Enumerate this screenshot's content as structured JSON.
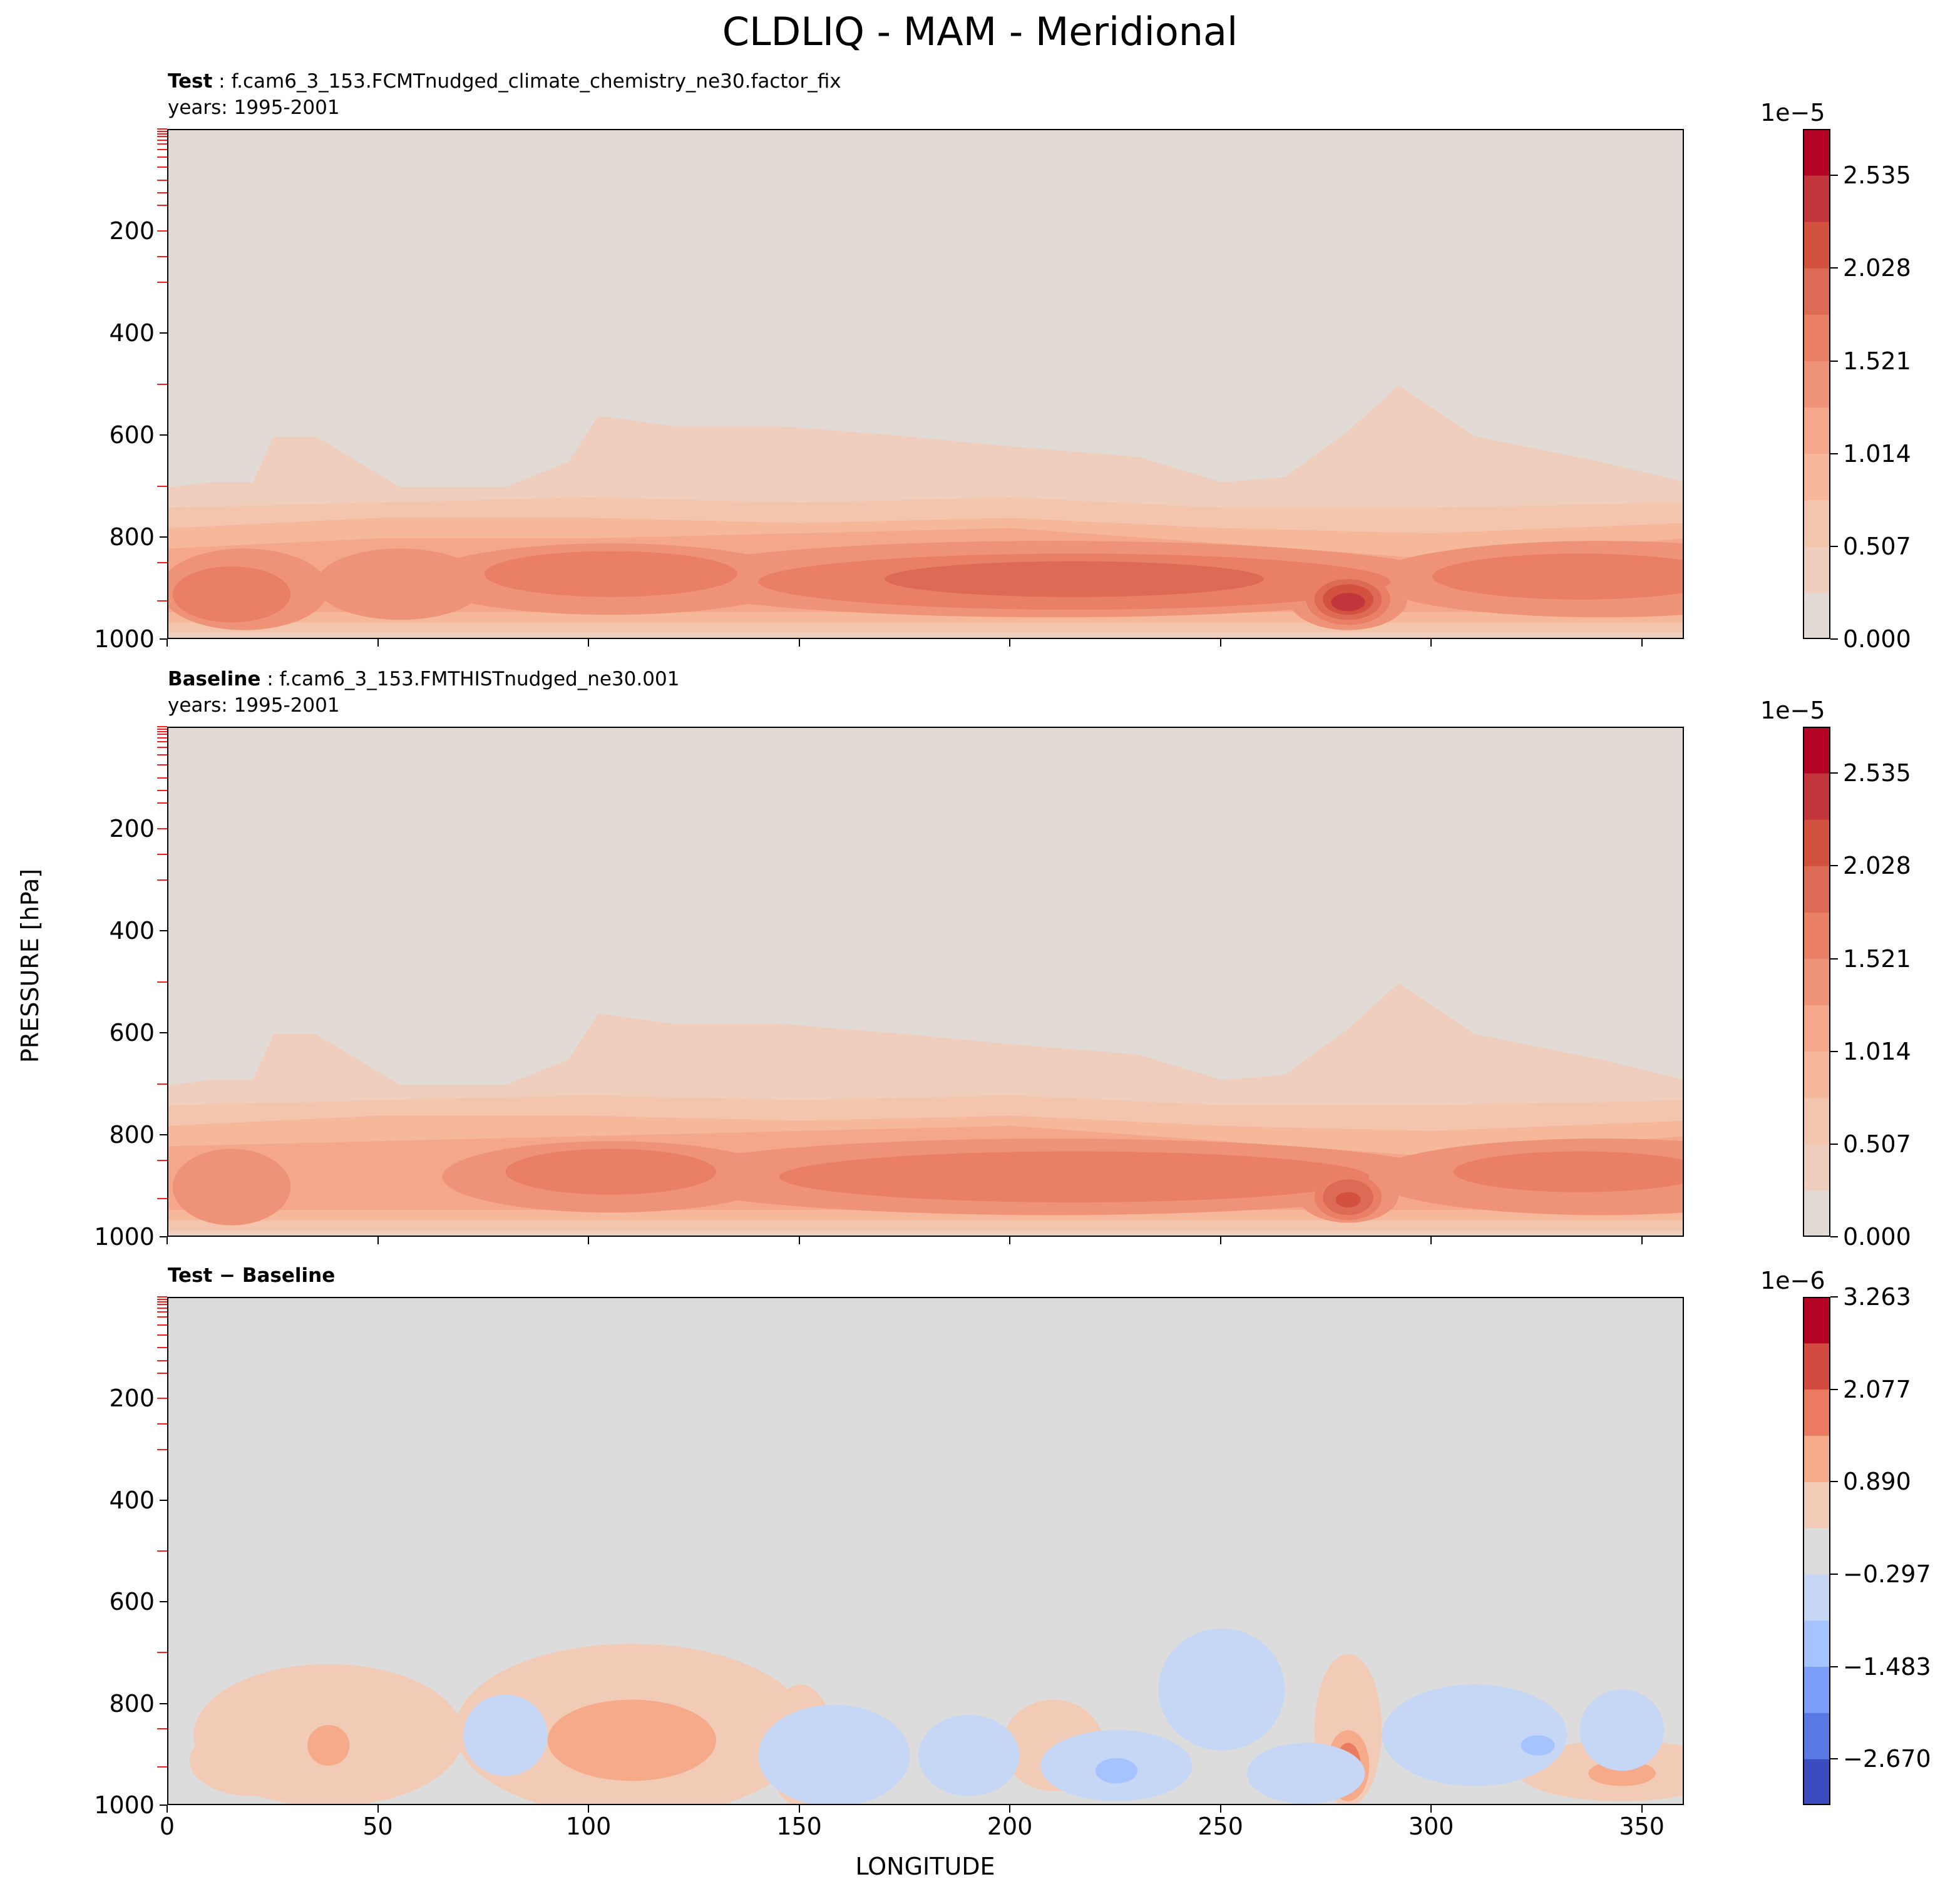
{
  "title": "CLDLIQ - MAM - Meridional",
  "ylabel": "PRESSURE [hPa]",
  "xlabel": "LONGITUDE",
  "colors": {
    "warm": [
      "#e1dad5",
      "#efcebd",
      "#f4c5ad",
      "#f6b89b",
      "#f5a78b",
      "#ef9378",
      "#e98066",
      "#dd6a54",
      "#d2513f",
      "#c2363b",
      "#b40426"
    ],
    "diverging": [
      "#3b4cc0",
      "#5a78e4",
      "#7b9ff9",
      "#a5c3fe",
      "#c5d7f5",
      "#dddcdc",
      "#f2cbb7",
      "#f5aa8a",
      "#ea7b60",
      "#d24b40",
      "#b40426"
    ]
  },
  "chart_data": [
    {
      "type": "contourf",
      "panel": "test",
      "label_bold": "Test",
      "label_rest": " : f.cam6_3_153.FCMTnudged_climate_chemistry_ne30.factor_fix",
      "years": "years: 1995-2001",
      "xlim": [
        0,
        360
      ],
      "ylim": [
        1000,
        0
      ],
      "yticks": [
        "200",
        "400",
        "600",
        "800",
        "1000"
      ],
      "ytick_values": [
        200,
        400,
        600,
        800,
        1000
      ],
      "colorbar": {
        "exponent": "1e−5",
        "ticks": [
          "0.000",
          "0.507",
          "1.014",
          "1.521",
          "2.028",
          "2.535"
        ],
        "tick_values": [
          0.0,
          0.507,
          1.014,
          1.521,
          2.028,
          2.535
        ],
        "vmax": 2.789,
        "levels": 11,
        "palette": "warm"
      },
      "features": [
        {
          "level": 1,
          "top": [
            [
              0,
              700
            ],
            [
              10,
              690
            ],
            [
              20,
              690
            ],
            [
              25,
              600
            ],
            [
              35,
              600
            ],
            [
              45,
              650
            ],
            [
              55,
              700
            ],
            [
              80,
              700
            ],
            [
              95,
              650
            ],
            [
              102,
              560
            ],
            [
              120,
              580
            ],
            [
              145,
              580
            ],
            [
              175,
              600
            ],
            [
              200,
              620
            ],
            [
              230,
              640
            ],
            [
              250,
              690
            ],
            [
              265,
              680
            ],
            [
              280,
              590
            ],
            [
              292,
              500
            ],
            [
              310,
              600
            ],
            [
              340,
              650
            ],
            [
              360,
              690
            ]
          ],
          "bottom": 1000
        },
        {
          "level": 2,
          "top": [
            [
              0,
              740
            ],
            [
              50,
              730
            ],
            [
              100,
              720
            ],
            [
              150,
              730
            ],
            [
              200,
              720
            ],
            [
              250,
              740
            ],
            [
              300,
              740
            ],
            [
              360,
              730
            ]
          ],
          "bottom": 985
        },
        {
          "level": 3,
          "top": [
            [
              0,
              780
            ],
            [
              50,
              760
            ],
            [
              100,
              760
            ],
            [
              150,
              770
            ],
            [
              200,
              760
            ],
            [
              250,
              780
            ],
            [
              300,
              790
            ],
            [
              360,
              770
            ]
          ],
          "bottom": 965
        },
        {
          "level": 4,
          "top": [
            [
              0,
              820
            ],
            [
              50,
              800
            ],
            [
              100,
              800
            ],
            [
              150,
              790
            ],
            [
              200,
              780
            ],
            [
              250,
              810
            ],
            [
              300,
              840
            ],
            [
              360,
              800
            ]
          ],
          "bottom": 945
        },
        {
          "level": 5,
          "blobs": [
            [
              18,
              900,
              20,
              80
            ],
            [
              55,
              890,
              20,
              70
            ],
            [
              105,
              880,
              45,
              70
            ],
            [
              210,
              880,
              95,
              75
            ],
            [
              340,
              880,
              55,
              75
            ],
            [
              280,
              920,
              14,
              60
            ]
          ]
        },
        {
          "level": 6,
          "blobs": [
            [
              15,
              910,
              14,
              55
            ],
            [
              105,
              870,
              30,
              45
            ],
            [
              215,
              885,
              75,
              55
            ],
            [
              335,
              875,
              35,
              45
            ],
            [
              280,
              920,
              10,
              50
            ]
          ]
        },
        {
          "level": 7,
          "blobs": [
            [
              215,
              880,
              45,
              35
            ],
            [
              280,
              920,
              8,
              40
            ]
          ]
        },
        {
          "level": 8,
          "blobs": [
            [
              280,
              920,
              6,
              30
            ]
          ]
        },
        {
          "level": 9,
          "blobs": [
            [
              280,
              925,
              4,
              18
            ]
          ]
        }
      ]
    },
    {
      "type": "contourf",
      "panel": "baseline",
      "label_bold": "Baseline",
      "label_rest": " : f.cam6_3_153.FMTHISTnudged_ne30.001",
      "years": "years: 1995-2001",
      "xlim": [
        0,
        360
      ],
      "ylim": [
        1000,
        0
      ],
      "yticks": [
        "200",
        "400",
        "600",
        "800",
        "1000"
      ],
      "ytick_values": [
        200,
        400,
        600,
        800,
        1000
      ],
      "colorbar": {
        "exponent": "1e−5",
        "ticks": [
          "0.000",
          "0.507",
          "1.014",
          "1.521",
          "2.028",
          "2.535"
        ],
        "tick_values": [
          0.0,
          0.507,
          1.014,
          1.521,
          2.028,
          2.535
        ],
        "vmax": 2.789,
        "levels": 11,
        "palette": "warm"
      },
      "features": [
        {
          "level": 1,
          "top": [
            [
              0,
              700
            ],
            [
              10,
              690
            ],
            [
              20,
              690
            ],
            [
              25,
              600
            ],
            [
              35,
              600
            ],
            [
              45,
              650
            ],
            [
              55,
              700
            ],
            [
              80,
              700
            ],
            [
              95,
              650
            ],
            [
              102,
              560
            ],
            [
              120,
              580
            ],
            [
              145,
              580
            ],
            [
              175,
              600
            ],
            [
              200,
              620
            ],
            [
              230,
              640
            ],
            [
              250,
              690
            ],
            [
              265,
              680
            ],
            [
              280,
              590
            ],
            [
              292,
              500
            ],
            [
              310,
              600
            ],
            [
              340,
              650
            ],
            [
              360,
              690
            ]
          ],
          "bottom": 1000
        },
        {
          "level": 2,
          "top": [
            [
              0,
              740
            ],
            [
              50,
              730
            ],
            [
              100,
              720
            ],
            [
              150,
              730
            ],
            [
              200,
              720
            ],
            [
              250,
              740
            ],
            [
              300,
              740
            ],
            [
              360,
              730
            ]
          ],
          "bottom": 985
        },
        {
          "level": 3,
          "top": [
            [
              0,
              780
            ],
            [
              50,
              760
            ],
            [
              100,
              760
            ],
            [
              150,
              770
            ],
            [
              200,
              760
            ],
            [
              250,
              780
            ],
            [
              300,
              790
            ],
            [
              360,
              770
            ]
          ],
          "bottom": 965
        },
        {
          "level": 4,
          "top": [
            [
              0,
              820
            ],
            [
              50,
              810
            ],
            [
              100,
              800
            ],
            [
              150,
              790
            ],
            [
              200,
              780
            ],
            [
              250,
              810
            ],
            [
              300,
              840
            ],
            [
              360,
              800
            ]
          ],
          "bottom": 945
        },
        {
          "level": 5,
          "blobs": [
            [
              15,
              900,
              14,
              75
            ],
            [
              105,
              880,
              40,
              70
            ],
            [
              210,
              880,
              95,
              75
            ],
            [
              340,
              880,
              55,
              75
            ],
            [
              280,
              915,
              12,
              55
            ]
          ]
        },
        {
          "level": 6,
          "blobs": [
            [
              105,
              870,
              25,
              45
            ],
            [
              215,
              880,
              70,
              50
            ],
            [
              335,
              870,
              30,
              40
            ],
            [
              280,
              920,
              8,
              45
            ]
          ]
        },
        {
          "level": 7,
          "blobs": [
            [
              280,
              920,
              6,
              35
            ]
          ]
        },
        {
          "level": 8,
          "blobs": [
            [
              280,
              925,
              3,
              15
            ]
          ]
        }
      ]
    },
    {
      "type": "contourf",
      "panel": "difference",
      "label_bold": "Test − Baseline",
      "label_rest": "",
      "years": "",
      "xlim": [
        0,
        360
      ],
      "ylim": [
        1000,
        0
      ],
      "yticks": [
        "200",
        "400",
        "600",
        "800",
        "1000"
      ],
      "ytick_values": [
        200,
        400,
        600,
        800,
        1000
      ],
      "xticks": [
        "0",
        "50",
        "100",
        "150",
        "200",
        "250",
        "300",
        "350"
      ],
      "xtick_values": [
        0,
        50,
        100,
        150,
        200,
        250,
        300,
        350
      ],
      "colorbar": {
        "exponent": "1e−6",
        "ticks": [
          "−2.670",
          "−1.483",
          "−0.297",
          "0.890",
          "2.077",
          "3.263"
        ],
        "tick_values": [
          -2.67,
          -1.483,
          -0.297,
          0.89,
          2.077,
          3.263
        ],
        "vmin": -3.263,
        "vmax": 3.263,
        "levels": 11,
        "palette": "diverging"
      },
      "features": [
        {
          "level": 6,
          "blobs": [
            [
              38,
              860,
              32,
              140
            ],
            [
              110,
              850,
              42,
              170
            ],
            [
              150,
              880,
              8,
              120
            ],
            [
              210,
              880,
              12,
              90
            ],
            [
              280,
              850,
              8,
              150
            ],
            [
              345,
              930,
              25,
              60
            ],
            [
              20,
              910,
              15,
              70
            ]
          ]
        },
        {
          "level": 7,
          "blobs": [
            [
              38,
              880,
              5,
              40
            ],
            [
              110,
              870,
              20,
              80
            ],
            [
              280,
              920,
              5,
              70
            ],
            [
              345,
              935,
              8,
              25
            ]
          ]
        },
        {
          "level": 8,
          "blobs": [
            [
              280,
              920,
              3,
              45
            ]
          ]
        },
        {
          "level": 9,
          "blobs": [
            [
              280,
              925,
              2,
              20
            ]
          ]
        },
        {
          "level": 4,
          "blobs": [
            [
              80,
              860,
              10,
              80
            ],
            [
              158,
              900,
              18,
              100
            ],
            [
              190,
              900,
              12,
              80
            ],
            [
              225,
              920,
              18,
              70
            ],
            [
              250,
              770,
              15,
              120
            ],
            [
              270,
              935,
              14,
              60
            ],
            [
              310,
              860,
              22,
              100
            ],
            [
              345,
              850,
              10,
              80
            ]
          ]
        },
        {
          "level": 3,
          "blobs": [
            [
              225,
              930,
              5,
              25
            ],
            [
              325,
              880,
              4,
              20
            ]
          ]
        }
      ]
    }
  ]
}
